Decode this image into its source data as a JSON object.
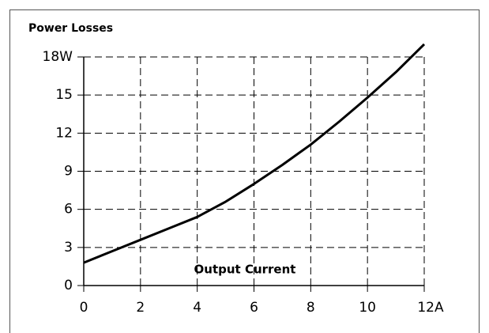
{
  "chart_data": {
    "type": "line",
    "title": "Power Losses",
    "x_label": "Output Current",
    "x": [
      0,
      1,
      2,
      3,
      4,
      5,
      6,
      7,
      8,
      9,
      10,
      11,
      12
    ],
    "series": [
      {
        "color": "#000000",
        "values": [
          1.8,
          2.7,
          3.6,
          4.5,
          5.4,
          6.6,
          8.0,
          9.5,
          11.1,
          12.9,
          14.8,
          16.8,
          19.0
        ]
      }
    ],
    "xlim": [
      0,
      12
    ],
    "xticks": [
      0,
      2,
      4,
      6,
      8,
      10,
      {
        "value": 12,
        "label": "12A"
      }
    ],
    "ylim": [
      0,
      18
    ],
    "yticks": [
      0,
      3,
      6,
      9,
      12,
      15,
      {
        "value": 18,
        "label": "18W"
      }
    ],
    "grid": true
  }
}
